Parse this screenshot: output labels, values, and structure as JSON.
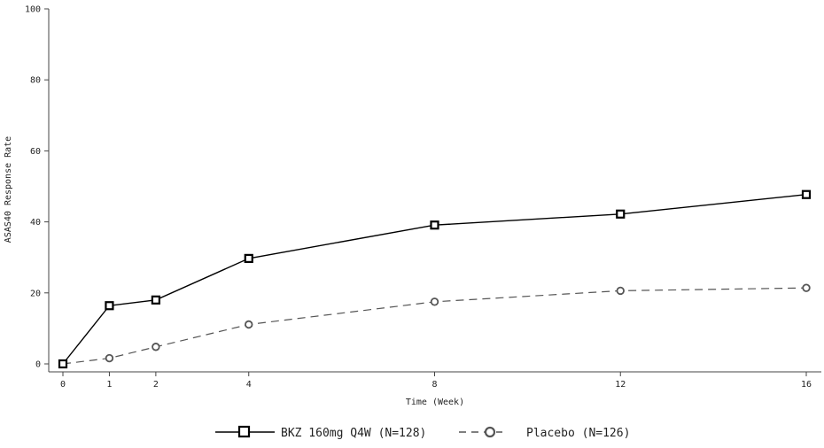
{
  "chart_data": {
    "type": "line",
    "title": "",
    "xlabel": "Time (Week)",
    "ylabel": "ASAS40 Response Rate",
    "x": [
      0,
      1,
      2,
      4,
      8,
      12,
      16
    ],
    "xticks": [
      "0",
      "1",
      "2",
      "4",
      "8",
      "12",
      "16"
    ],
    "xlim": [
      0,
      16
    ],
    "ylim": [
      0,
      100
    ],
    "yticks": [
      "0",
      "20",
      "40",
      "60",
      "80",
      "100"
    ],
    "grid": false,
    "legend_position": "bottom-center",
    "series": [
      {
        "name": "BKZ 160mg Q4W (N=128)",
        "values": [
          0,
          16.4,
          18.0,
          29.7,
          39.1,
          42.2,
          47.7
        ],
        "marker": "square",
        "line_style": "solid",
        "color": "#000000"
      },
      {
        "name": "Placebo (N=126)",
        "values": [
          0,
          1.6,
          4.8,
          11.1,
          17.5,
          20.6,
          21.4
        ],
        "marker": "circle",
        "line_style": "dashed",
        "color": "#555555"
      }
    ]
  }
}
